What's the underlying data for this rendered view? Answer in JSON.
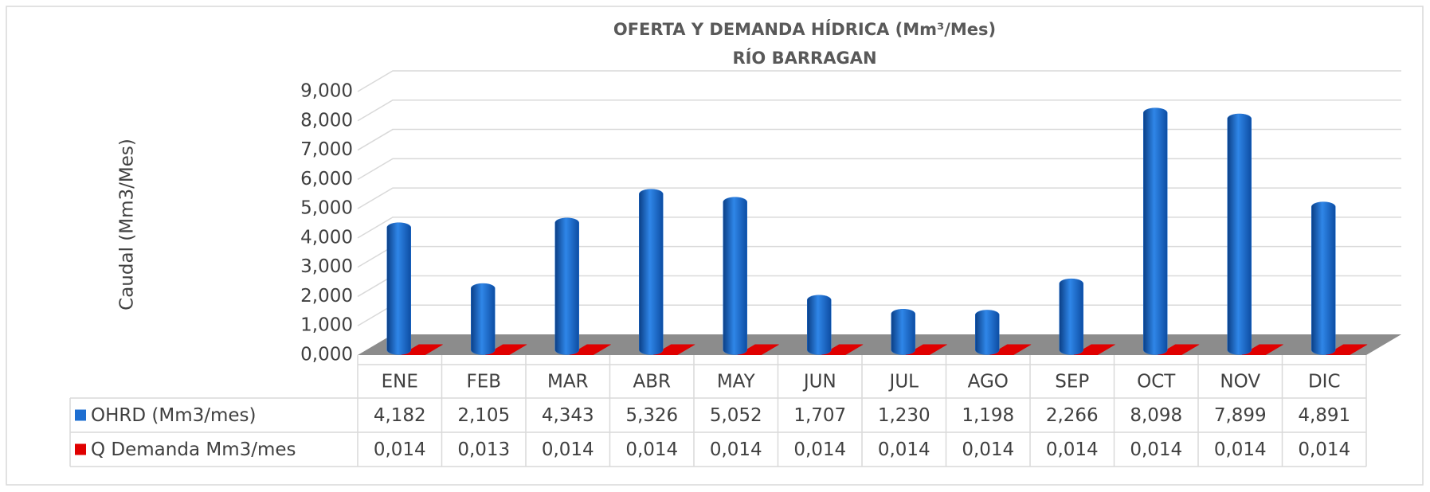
{
  "chart_data": {
    "type": "bar",
    "title": "OFERTA Y DEMANDA HÍDRICA (Mm³/Mes)",
    "subtitle": "RÍO BARRAGAN",
    "y_label": "Caudal (Mm3/Mes)",
    "categories": [
      "ENE",
      "FEB",
      "MAR",
      "ABR",
      "MAY",
      "JUN",
      "JUL",
      "AGO",
      "SEP",
      "OCT",
      "NOV",
      "DIC"
    ],
    "series": [
      {
        "name": "OHRD (Mm3/mes)",
        "color": "#1f6fd1",
        "values": [
          4.182,
          2.105,
          4.343,
          5.326,
          5.052,
          1.707,
          1.23,
          1.198,
          2.266,
          8.098,
          7.899,
          4.891
        ],
        "value_labels": [
          "4,182",
          "2,105",
          "4,343",
          "5,326",
          "5,052",
          "1,707",
          "1,230",
          "1,198",
          "2,266",
          "8,098",
          "7,899",
          "4,891"
        ]
      },
      {
        "name": "Q Demanda Mm3/mes",
        "color": "#e00000",
        "values": [
          0.014,
          0.013,
          0.014,
          0.014,
          0.014,
          0.014,
          0.014,
          0.014,
          0.014,
          0.014,
          0.014,
          0.014
        ],
        "value_labels": [
          "0,014",
          "0,013",
          "0,014",
          "0,014",
          "0,014",
          "0,014",
          "0,014",
          "0,014",
          "0,014",
          "0,014",
          "0,014",
          "0,014"
        ]
      }
    ],
    "ylim": [
      0,
      9
    ],
    "yticks": [
      {
        "value": 0,
        "label": "0,000"
      },
      {
        "value": 1,
        "label": "1,000"
      },
      {
        "value": 2,
        "label": "2,000"
      },
      {
        "value": 3,
        "label": "3,000"
      },
      {
        "value": 4,
        "label": "4,000"
      },
      {
        "value": 5,
        "label": "5,000"
      },
      {
        "value": 6,
        "label": "6,000"
      },
      {
        "value": 7,
        "label": "7,000"
      },
      {
        "value": 8,
        "label": "8,000"
      },
      {
        "value": 9,
        "label": "9,000"
      }
    ],
    "grid": true
  }
}
